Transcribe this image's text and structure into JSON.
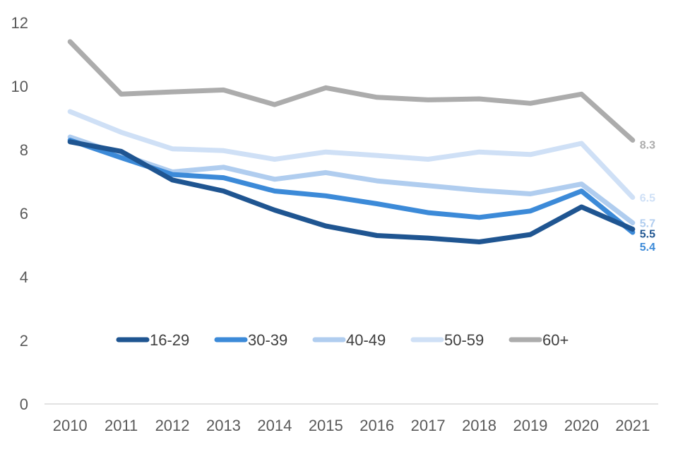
{
  "chart_data": {
    "type": "line",
    "title": "",
    "xlabel": "",
    "ylabel": "",
    "ylim": [
      0,
      12
    ],
    "yticks": [
      0,
      2,
      4,
      6,
      8,
      10,
      12
    ],
    "categories": [
      "2010",
      "2011",
      "2012",
      "2013",
      "2014",
      "2015",
      "2016",
      "2017",
      "2018",
      "2019",
      "2020",
      "2021"
    ],
    "grid": false,
    "legend_position": "center",
    "series": [
      {
        "name": "16-29",
        "color": "#1f5591",
        "values": [
          8.25,
          7.95,
          7.05,
          6.7,
          6.1,
          5.6,
          5.3,
          5.22,
          5.1,
          5.33,
          6.2,
          5.5
        ],
        "end_label": "5.5"
      },
      {
        "name": "30-39",
        "color": "#3c8ad8",
        "values": [
          8.3,
          7.75,
          7.22,
          7.12,
          6.7,
          6.55,
          6.3,
          6.02,
          5.87,
          6.07,
          6.7,
          5.4
        ],
        "end_label": "5.4"
      },
      {
        "name": "40-49",
        "color": "#b0cdef",
        "values": [
          8.4,
          7.85,
          7.3,
          7.45,
          7.07,
          7.28,
          7.02,
          6.87,
          6.72,
          6.61,
          6.92,
          5.7
        ],
        "end_label": "5.7"
      },
      {
        "name": "50-59",
        "color": "#cfe0f6",
        "values": [
          9.2,
          8.55,
          8.03,
          7.97,
          7.7,
          7.93,
          7.82,
          7.7,
          7.93,
          7.85,
          8.2,
          6.5
        ],
        "end_label": "6.5"
      },
      {
        "name": "60+",
        "color": "#acacac",
        "values": [
          11.4,
          9.75,
          9.82,
          9.88,
          9.42,
          9.95,
          9.65,
          9.57,
          9.6,
          9.46,
          9.75,
          8.3
        ],
        "end_label": "8.3"
      }
    ]
  }
}
